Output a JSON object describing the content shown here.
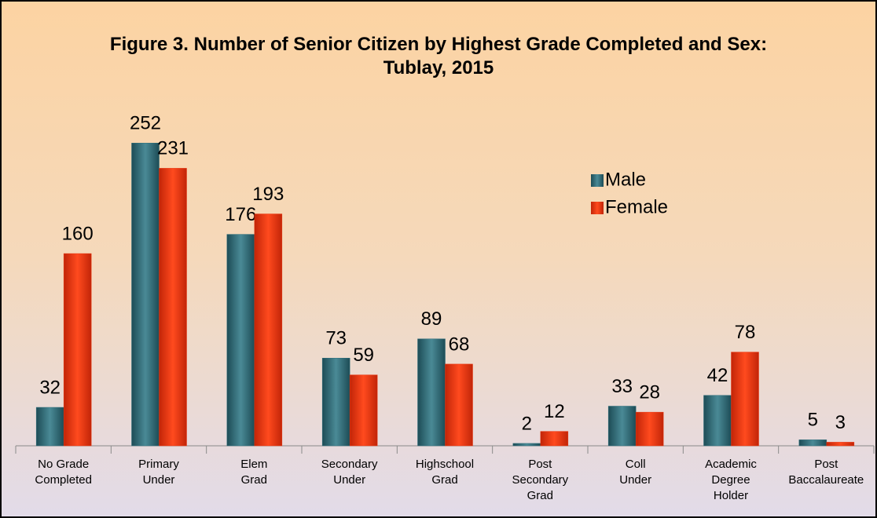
{
  "chart_data": {
    "type": "bar",
    "title": "Figure 3. Number of Senior Citizen by Highest Grade Completed and Sex:\nTublay, 2015",
    "categories": [
      "No Grade\nCompleted",
      "Primary\nUnder",
      "Elem\nGrad",
      "Secondary\nUnder",
      "Highschool\nGrad",
      "Post\nSecondary\nGrad",
      "Coll\nUnder",
      "Academic\nDegree\nHolder",
      "Post\nBaccalaureate"
    ],
    "series": [
      {
        "name": "Male",
        "color": "#2f6f7c",
        "values": [
          32,
          252,
          176,
          73,
          89,
          2,
          33,
          42,
          5
        ]
      },
      {
        "name": "Female",
        "color": "#e8350f",
        "values": [
          160,
          231,
          193,
          59,
          68,
          12,
          28,
          78,
          3
        ]
      }
    ],
    "ylim": [
      0,
      260
    ],
    "legend": "upper right"
  }
}
